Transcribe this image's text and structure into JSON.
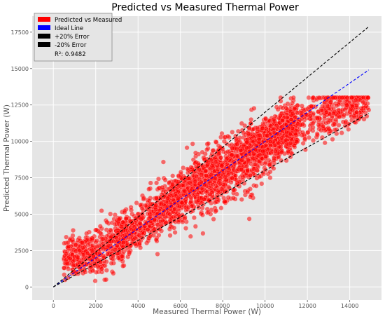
{
  "chart_data": {
    "type": "scatter",
    "title": "Predicted vs Measured Thermal Power",
    "xlabel": "Measured Thermal Power (W)",
    "ylabel": "Predicted Thermal Power (W)",
    "xlim": [
      -1000,
      15500
    ],
    "ylim": [
      -900,
      18600
    ],
    "xticks": [
      0,
      2000,
      4000,
      6000,
      8000,
      10000,
      12000,
      14000
    ],
    "yticks": [
      0,
      2500,
      5000,
      7500,
      10000,
      12500,
      15000,
      17500
    ],
    "grid": true,
    "legend_position": "top-left",
    "r2": 0.9482,
    "series": [
      {
        "name": "Predicted vs Measured",
        "color": "#ff0000",
        "marker": "circle",
        "point_count_estimate": 3000,
        "x_range": [
          0,
          14900
        ],
        "y_range": [
          0,
          13000
        ],
        "description": "Dense scatter around the ideal line, clustered near predicted 2500-3500 at low measured values and saturating near 12500-13000 at high measured values"
      },
      {
        "name": "Ideal Line",
        "color": "#0000ff",
        "style": "dashed",
        "x": [
          0,
          14900
        ],
        "y": [
          0,
          14900
        ]
      },
      {
        "name": "+20% Error",
        "color": "#000000",
        "style": "dashed",
        "x": [
          0,
          14900
        ],
        "y": [
          0,
          17880
        ]
      },
      {
        "name": "-20% Error",
        "color": "#000000",
        "style": "dashed",
        "x": [
          0,
          14900
        ],
        "y": [
          0,
          11920
        ]
      }
    ],
    "legend": {
      "entries": [
        "Predicted vs Measured",
        "Ideal Line",
        "+20% Error",
        "-20% Error"
      ],
      "colors": [
        "#ff0000",
        "#0000ff",
        "#000000",
        "#000000"
      ],
      "extra_text": "R²: 0.9482"
    }
  }
}
